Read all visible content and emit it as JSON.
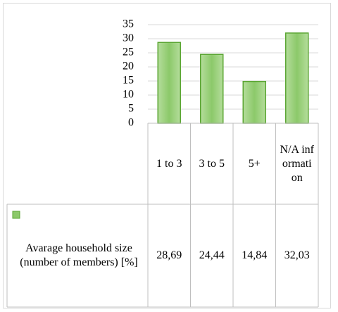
{
  "chart_data": {
    "type": "bar",
    "categories": [
      "1 to 3",
      "3 to 5",
      "5+",
      "N/A information"
    ],
    "series": [
      {
        "name": "Avarage household size (number of members) [%]",
        "color": "#8cc96a",
        "values": [
          28.69,
          24.44,
          14.84,
          32.03
        ],
        "value_labels": [
          "28,69",
          "24,44",
          "14,84",
          "32,03"
        ]
      }
    ],
    "ylim": [
      0,
      35
    ],
    "yticks": [
      0,
      5,
      10,
      15,
      20,
      25,
      30,
      35
    ],
    "grid": true
  }
}
